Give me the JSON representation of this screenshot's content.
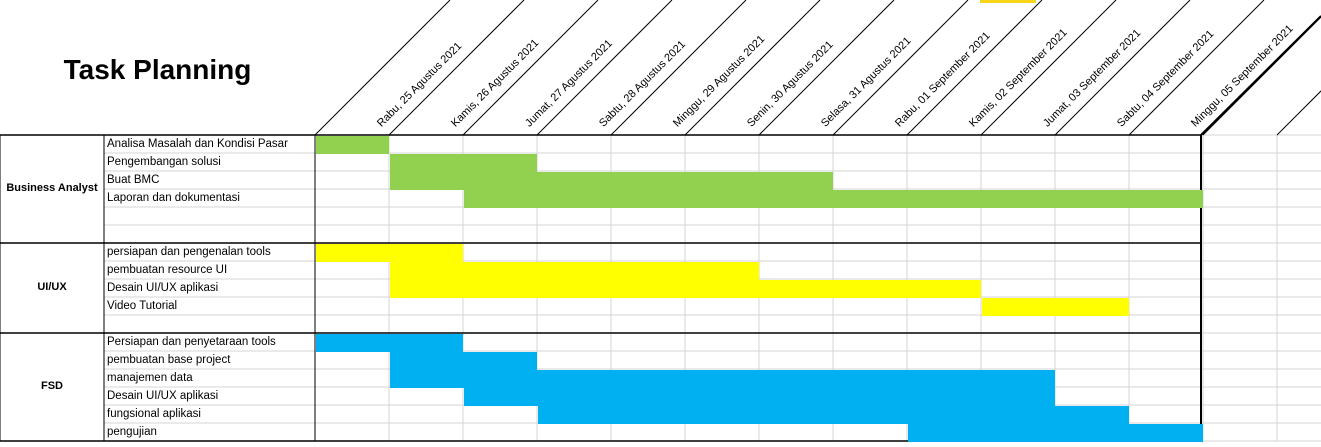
{
  "sheet": {
    "title": "Task Planning",
    "highlight_color": "#f7d417"
  },
  "dates": [
    "Rabu, 25 Agustus 2021",
    "Kamis, 26 Agustus 2021",
    "Jumat, 27 Agustus 2021",
    "Sabtu, 28 Agustus 2021",
    "Minggu, 29 Agustus 2021",
    "Senin, 30 Agustus 2021",
    "Selasa, 31 Agustus 2021",
    "Rabu, 01 September 2021",
    "Kamis, 02 September 2021",
    "Jumat, 03 September 2021",
    "Sabtu, 04 September 2021",
    "Minggu, 05 September 2021"
  ],
  "groups": [
    {
      "name": "Business Analyst",
      "color": "#92d050",
      "rows": 6,
      "tasks": [
        {
          "label": "Analisa Masalah dan Kondisi Pasar",
          "start": 0,
          "end": 0
        },
        {
          "label": "Pengembangan solusi",
          "start": 1,
          "end": 2
        },
        {
          "label": "Buat BMC",
          "start": 1,
          "end": 6
        },
        {
          "label": "Laporan dan dokumentasi",
          "start": 2,
          "end": 11
        }
      ]
    },
    {
      "name": "UI/UX",
      "color": "#ffff00",
      "rows": 5,
      "tasks": [
        {
          "label": "persiapan dan pengenalan tools",
          "start": 0,
          "end": 1
        },
        {
          "label": "pembuatan resource UI",
          "start": 1,
          "end": 5
        },
        {
          "label": "Desain UI/UX aplikasi",
          "start": 1,
          "end": 8
        },
        {
          "label": "Video Tutorial",
          "start": 9,
          "end": 10
        }
      ]
    },
    {
      "name": "FSD",
      "color": "#00b0f0",
      "rows": 6,
      "tasks": [
        {
          "label": "Persiapan dan penyetaraan tools",
          "start": 0,
          "end": 1
        },
        {
          "label": "pembuatan base project",
          "start": 1,
          "end": 2
        },
        {
          "label": "manajemen data",
          "start": 1,
          "end": 9
        },
        {
          "label": "Desain UI/UX aplikasi",
          "start": 2,
          "end": 9
        },
        {
          "label": "fungsional aplikasi",
          "start": 3,
          "end": 10
        },
        {
          "label": "pengujian",
          "start": 8,
          "end": 11
        }
      ]
    }
  ]
}
